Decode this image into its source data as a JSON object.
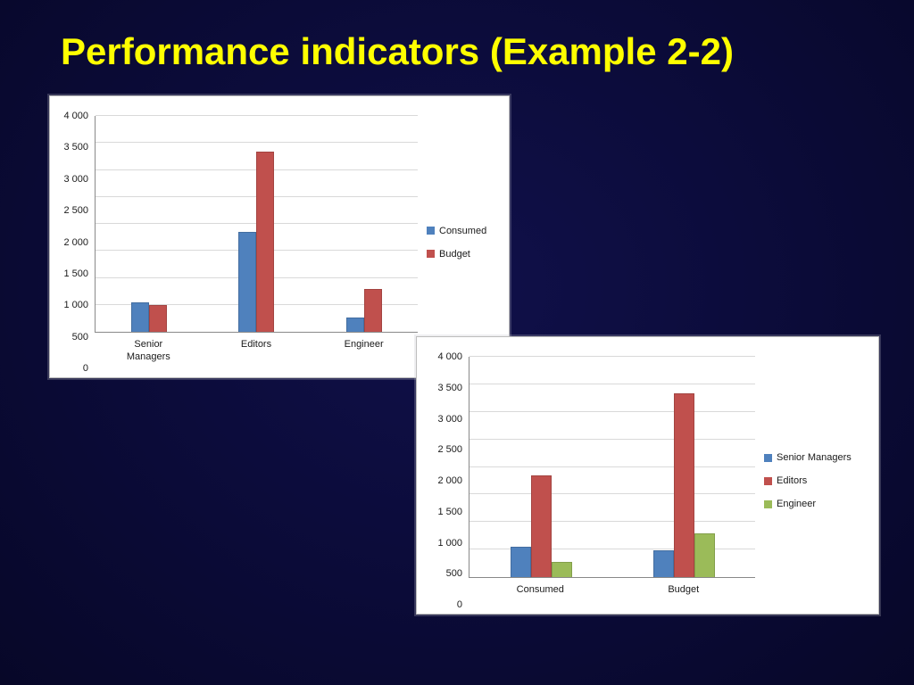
{
  "slide": {
    "title": "Performance indicators (Example 2-2)",
    "title_color": "#ffff00",
    "background_color": "#0b0b38"
  },
  "colors": {
    "series_blue": "#4f81bd",
    "series_red": "#c0504d",
    "series_green": "#9bbb59"
  },
  "chart_data": [
    {
      "type": "bar",
      "title": "",
      "categories": [
        "Senior Managers",
        "Editors",
        "Engineer"
      ],
      "series": [
        {
          "name": "Consumed",
          "color": "#4f81bd",
          "values": [
            550,
            1850,
            270
          ]
        },
        {
          "name": "Budget",
          "color": "#c0504d",
          "values": [
            490,
            3340,
            790
          ]
        }
      ],
      "ylim": [
        0,
        4000
      ],
      "ytick_step": 500,
      "yticks": [
        "0",
        "500",
        "1 000",
        "1 500",
        "2 000",
        "2 500",
        "3 000",
        "3 500",
        "4 000"
      ],
      "grid": true,
      "legend_position": "right"
    },
    {
      "type": "bar",
      "title": "",
      "categories": [
        "Consumed",
        "Budget"
      ],
      "series": [
        {
          "name": "Senior Managers",
          "color": "#4f81bd",
          "values": [
            550,
            490
          ]
        },
        {
          "name": "Editors",
          "color": "#c0504d",
          "values": [
            1850,
            3340
          ]
        },
        {
          "name": "Engineer",
          "color": "#9bbb59",
          "values": [
            270,
            790
          ]
        }
      ],
      "ylim": [
        0,
        4000
      ],
      "ytick_step": 500,
      "yticks": [
        "0",
        "500",
        "1 000",
        "1 500",
        "2 000",
        "2 500",
        "3 000",
        "3 500",
        "4 000"
      ],
      "grid": true,
      "legend_position": "right"
    }
  ]
}
